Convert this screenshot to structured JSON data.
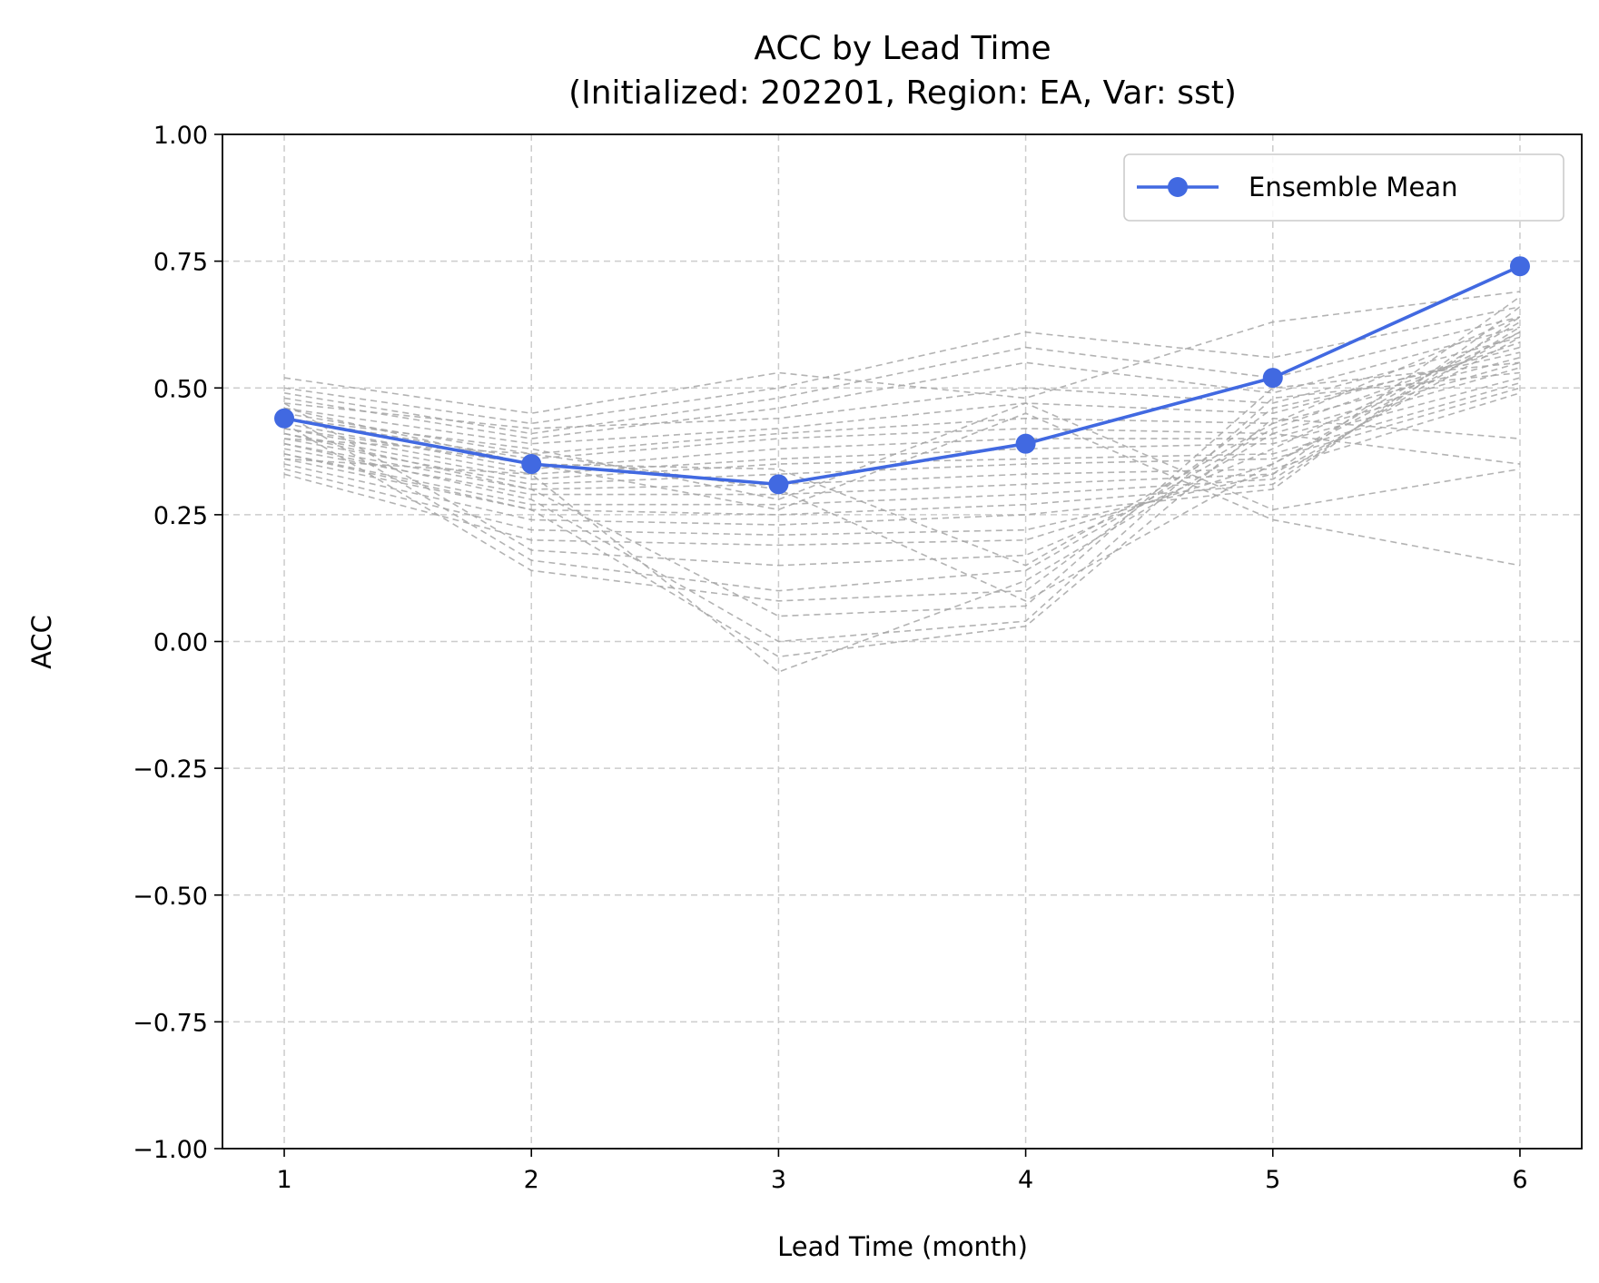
{
  "chart_data": {
    "type": "line",
    "title_lines": [
      "ACC by Lead Time",
      "(Initialized: 202201, Region: EA, Var: sst)"
    ],
    "xlabel": "Lead Time (month)",
    "ylabel": "ACC",
    "x": [
      1,
      2,
      3,
      4,
      5,
      6
    ],
    "xlim": [
      0.75,
      6.25
    ],
    "ylim": [
      -1.0,
      1.0
    ],
    "xticks": [
      "1",
      "2",
      "3",
      "4",
      "5",
      "6"
    ],
    "yticks": [
      1.0,
      0.75,
      0.5,
      0.25,
      0.0,
      -0.25,
      -0.5,
      -0.75,
      -1.0
    ],
    "ytick_labels": [
      "1.00",
      "0.75",
      "0.50",
      "0.25",
      "0.00",
      "−0.25",
      "−0.50",
      "−0.75",
      "−1.00"
    ],
    "grid": true,
    "legend_position": "top-right",
    "ensemble_mean": {
      "name": "Ensemble Mean",
      "color": "#4169e1",
      "values": [
        0.44,
        0.35,
        0.31,
        0.39,
        0.52,
        0.74
      ]
    },
    "members_color": "#a6a6a6",
    "members": [
      [
        0.52,
        0.45,
        0.53,
        0.48,
        0.63,
        0.69
      ],
      [
        0.5,
        0.43,
        0.5,
        0.61,
        0.56,
        0.66
      ],
      [
        0.49,
        0.41,
        0.48,
        0.58,
        0.52,
        0.64
      ],
      [
        0.48,
        0.4,
        0.46,
        0.55,
        0.49,
        0.62
      ],
      [
        0.47,
        0.42,
        0.44,
        0.5,
        0.47,
        0.6
      ],
      [
        0.46,
        0.39,
        0.42,
        0.47,
        0.45,
        0.58
      ],
      [
        0.45,
        0.37,
        0.41,
        0.44,
        0.43,
        0.56
      ],
      [
        0.44,
        0.36,
        0.4,
        0.42,
        0.41,
        0.55
      ],
      [
        0.43,
        0.34,
        0.38,
        0.4,
        0.4,
        0.54
      ],
      [
        0.42,
        0.33,
        0.36,
        0.38,
        0.39,
        0.52
      ],
      [
        0.41,
        0.32,
        0.35,
        0.36,
        0.37,
        0.51
      ],
      [
        0.4,
        0.31,
        0.33,
        0.35,
        0.36,
        0.5
      ],
      [
        0.39,
        0.3,
        0.31,
        0.33,
        0.34,
        0.49
      ],
      [
        0.38,
        0.29,
        0.29,
        0.31,
        0.33,
        0.6
      ],
      [
        0.37,
        0.27,
        0.27,
        0.29,
        0.32,
        0.62
      ],
      [
        0.36,
        0.26,
        0.25,
        0.27,
        0.31,
        0.64
      ],
      [
        0.35,
        0.24,
        0.23,
        0.25,
        0.3,
        0.66
      ],
      [
        0.34,
        0.22,
        0.21,
        0.22,
        0.33,
        0.68
      ],
      [
        0.33,
        0.2,
        0.19,
        0.2,
        0.35,
        0.63
      ],
      [
        0.47,
        0.18,
        0.15,
        0.17,
        0.38,
        0.61
      ],
      [
        0.45,
        0.16,
        0.1,
        0.14,
        0.42,
        0.59
      ],
      [
        0.43,
        0.14,
        0.08,
        0.1,
        0.46,
        0.57
      ],
      [
        0.41,
        0.3,
        0.05,
        0.07,
        0.5,
        0.55
      ],
      [
        0.39,
        0.28,
        0.0,
        0.04,
        0.48,
        0.53
      ],
      [
        0.37,
        0.26,
        -0.03,
        0.03,
        0.44,
        0.4
      ],
      [
        0.36,
        0.33,
        -0.06,
        0.12,
        0.41,
        0.35
      ],
      [
        0.44,
        0.38,
        0.28,
        0.47,
        0.26,
        0.34
      ],
      [
        0.42,
        0.35,
        0.26,
        0.45,
        0.24,
        0.15
      ],
      [
        0.4,
        0.37,
        0.3,
        0.08,
        0.35,
        0.61
      ],
      [
        0.46,
        0.35,
        0.34,
        0.15,
        0.43,
        0.64
      ]
    ]
  }
}
